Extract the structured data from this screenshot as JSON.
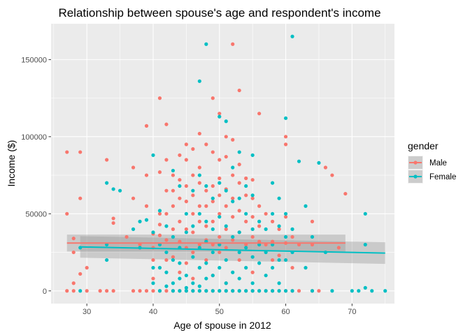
{
  "chart_data": {
    "type": "scatter",
    "title": "Relationship between spouse's age and respondent's income",
    "xlabel": "Age of spouse in 2012",
    "ylabel": "Income ($)",
    "xlim": [
      24.6,
      76.4
    ],
    "ylim": [
      -8250,
      173250
    ],
    "x_ticks": [
      30,
      40,
      50,
      60,
      70
    ],
    "y_ticks": [
      0,
      50000,
      100000,
      150000
    ],
    "y_tick_labels": [
      "0",
      "50000",
      "100000",
      "150000"
    ],
    "grid": true,
    "legend": {
      "title": "gender",
      "placement": "right"
    },
    "series": [
      {
        "name": "Male",
        "color": "#f8766d",
        "points": [
          [
            27,
            90000
          ],
          [
            27,
            50000
          ],
          [
            27,
            0
          ],
          [
            28,
            34000
          ],
          [
            28,
            25000
          ],
          [
            28,
            5000
          ],
          [
            28,
            0
          ],
          [
            29,
            90000
          ],
          [
            29,
            60000
          ],
          [
            29,
            11000
          ],
          [
            30,
            15000
          ],
          [
            30,
            0
          ],
          [
            32,
            0
          ],
          [
            33,
            85000
          ],
          [
            33,
            0
          ],
          [
            34,
            47000
          ],
          [
            34,
            44000
          ],
          [
            34,
            0
          ],
          [
            36,
            35000
          ],
          [
            37,
            80000
          ],
          [
            37,
            60000
          ],
          [
            37,
            0
          ],
          [
            38,
            30000
          ],
          [
            38,
            0
          ],
          [
            39,
            107000
          ],
          [
            39,
            75000
          ],
          [
            39,
            55000
          ],
          [
            39,
            0
          ],
          [
            40,
            37000
          ],
          [
            40,
            28000
          ],
          [
            40,
            20000
          ],
          [
            40,
            8000
          ],
          [
            40,
            0
          ],
          [
            41,
            125000
          ],
          [
            41,
            77000
          ],
          [
            41,
            50000
          ],
          [
            41,
            43000
          ],
          [
            41,
            36000
          ],
          [
            41,
            0
          ],
          [
            42,
            108000
          ],
          [
            42,
            85000
          ],
          [
            42,
            65000
          ],
          [
            42,
            50000
          ],
          [
            42,
            33000
          ],
          [
            42,
            20000
          ],
          [
            42,
            0
          ],
          [
            43,
            75000
          ],
          [
            43,
            65000
          ],
          [
            43,
            55000
          ],
          [
            43,
            40000
          ],
          [
            43,
            22000
          ],
          [
            43,
            0
          ],
          [
            44,
            88000
          ],
          [
            44,
            72000
          ],
          [
            44,
            60000
          ],
          [
            44,
            45000
          ],
          [
            44,
            32000
          ],
          [
            44,
            12000
          ],
          [
            44,
            0
          ],
          [
            45,
            95000
          ],
          [
            45,
            85000
          ],
          [
            45,
            68000
          ],
          [
            45,
            58000
          ],
          [
            45,
            40000
          ],
          [
            45,
            28000
          ],
          [
            45,
            18000
          ],
          [
            45,
            0
          ],
          [
            46,
            92000
          ],
          [
            46,
            75000
          ],
          [
            46,
            62000
          ],
          [
            46,
            50000
          ],
          [
            46,
            38000
          ],
          [
            46,
            25000
          ],
          [
            46,
            8000
          ],
          [
            46,
            0
          ],
          [
            47,
            102000
          ],
          [
            47,
            80000
          ],
          [
            47,
            70000
          ],
          [
            47,
            55000
          ],
          [
            47,
            45000
          ],
          [
            47,
            30000
          ],
          [
            47,
            15000
          ],
          [
            47,
            0
          ],
          [
            48,
            95000
          ],
          [
            48,
            65000
          ],
          [
            48,
            55000
          ],
          [
            48,
            42000
          ],
          [
            48,
            33000
          ],
          [
            48,
            20000
          ],
          [
            48,
            0
          ],
          [
            49,
            125000
          ],
          [
            49,
            90000
          ],
          [
            49,
            68000
          ],
          [
            49,
            58000
          ],
          [
            49,
            45000
          ],
          [
            49,
            30000
          ],
          [
            49,
            10000
          ],
          [
            49,
            0
          ],
          [
            50,
            115000
          ],
          [
            50,
            85000
          ],
          [
            50,
            73000
          ],
          [
            50,
            62000
          ],
          [
            50,
            50000
          ],
          [
            50,
            35000
          ],
          [
            50,
            25000
          ],
          [
            50,
            0
          ],
          [
            51,
            100000
          ],
          [
            51,
            87000
          ],
          [
            51,
            66000
          ],
          [
            51,
            55000
          ],
          [
            51,
            40000
          ],
          [
            51,
            28000
          ],
          [
            51,
            5000
          ],
          [
            51,
            0
          ],
          [
            52,
            160000
          ],
          [
            52,
            98000
          ],
          [
            52,
            75000
          ],
          [
            52,
            60000
          ],
          [
            52,
            48000
          ],
          [
            52,
            33000
          ],
          [
            52,
            0
          ],
          [
            53,
            130000
          ],
          [
            53,
            82000
          ],
          [
            53,
            70000
          ],
          [
            53,
            52000
          ],
          [
            53,
            38000
          ],
          [
            53,
            20000
          ],
          [
            53,
            0
          ],
          [
            54,
            73000
          ],
          [
            54,
            62000
          ],
          [
            54,
            45000
          ],
          [
            54,
            30000
          ],
          [
            54,
            0
          ],
          [
            55,
            72000
          ],
          [
            55,
            60000
          ],
          [
            55,
            48000
          ],
          [
            55,
            35000
          ],
          [
            55,
            12000
          ],
          [
            55,
            0
          ],
          [
            56,
            115000
          ],
          [
            56,
            55000
          ],
          [
            56,
            42000
          ],
          [
            56,
            32000
          ],
          [
            56,
            0
          ],
          [
            57,
            50000
          ],
          [
            57,
            30000
          ],
          [
            57,
            0
          ],
          [
            58,
            45000
          ],
          [
            58,
            32000
          ],
          [
            58,
            20000
          ],
          [
            58,
            0
          ],
          [
            59,
            40000
          ],
          [
            59,
            23000
          ],
          [
            59,
            0
          ],
          [
            60,
            100000
          ],
          [
            60,
            95000
          ],
          [
            60,
            48000
          ],
          [
            60,
            31000
          ],
          [
            60,
            0
          ],
          [
            61,
            35000
          ],
          [
            61,
            15000
          ],
          [
            61,
            0
          ],
          [
            62,
            30000
          ],
          [
            62,
            0
          ],
          [
            64,
            45000
          ],
          [
            64,
            30000
          ],
          [
            64,
            0
          ],
          [
            65,
            0
          ],
          [
            66,
            80000
          ],
          [
            67,
            75000
          ],
          [
            68,
            28000
          ],
          [
            69,
            63000
          ]
        ]
      },
      {
        "name": "Female",
        "color": "#00bfc4",
        "points": [
          [
            29,
            28000
          ],
          [
            29,
            0
          ],
          [
            33,
            70000
          ],
          [
            33,
            30000
          ],
          [
            33,
            20000
          ],
          [
            34,
            66000
          ],
          [
            35,
            65000
          ],
          [
            37,
            40000
          ],
          [
            38,
            45000
          ],
          [
            38,
            28000
          ],
          [
            39,
            46000
          ],
          [
            40,
            88000
          ],
          [
            40,
            38000
          ],
          [
            40,
            15000
          ],
          [
            40,
            5000
          ],
          [
            41,
            52000
          ],
          [
            41,
            30000
          ],
          [
            41,
            15000
          ],
          [
            41,
            0
          ],
          [
            42,
            42000
          ],
          [
            42,
            25000
          ],
          [
            42,
            12000
          ],
          [
            42,
            3000
          ],
          [
            43,
            78000
          ],
          [
            43,
            35000
          ],
          [
            43,
            20000
          ],
          [
            43,
            5000
          ],
          [
            43,
            0
          ],
          [
            44,
            68000
          ],
          [
            44,
            28000
          ],
          [
            44,
            18000
          ],
          [
            44,
            8000
          ],
          [
            44,
            0
          ],
          [
            45,
            50000
          ],
          [
            45,
            38000
          ],
          [
            45,
            10000
          ],
          [
            45,
            2000
          ],
          [
            45,
            0
          ],
          [
            46,
            65000
          ],
          [
            46,
            42000
          ],
          [
            46,
            22000
          ],
          [
            46,
            5000
          ],
          [
            46,
            0
          ],
          [
            47,
            136000
          ],
          [
            47,
            75000
          ],
          [
            47,
            50000
          ],
          [
            47,
            28000
          ],
          [
            47,
            15000
          ],
          [
            47,
            3000
          ],
          [
            47,
            0
          ],
          [
            48,
            160000
          ],
          [
            48,
            68000
          ],
          [
            48,
            45000
          ],
          [
            48,
            32000
          ],
          [
            48,
            18000
          ],
          [
            48,
            8000
          ],
          [
            48,
            0
          ],
          [
            49,
            60000
          ],
          [
            49,
            40000
          ],
          [
            49,
            25000
          ],
          [
            49,
            10000
          ],
          [
            49,
            0
          ],
          [
            50,
            113000
          ],
          [
            50,
            70000
          ],
          [
            50,
            48000
          ],
          [
            50,
            30000
          ],
          [
            50,
            15000
          ],
          [
            50,
            0
          ],
          [
            51,
            110000
          ],
          [
            51,
            65000
          ],
          [
            51,
            42000
          ],
          [
            51,
            20000
          ],
          [
            51,
            5000
          ],
          [
            51,
            0
          ],
          [
            52,
            80000
          ],
          [
            52,
            58000
          ],
          [
            52,
            35000
          ],
          [
            52,
            12000
          ],
          [
            52,
            0
          ],
          [
            53,
            90000
          ],
          [
            53,
            60000
          ],
          [
            53,
            38000
          ],
          [
            53,
            25000
          ],
          [
            53,
            8000
          ],
          [
            53,
            0
          ],
          [
            54,
            68000
          ],
          [
            54,
            50000
          ],
          [
            54,
            28000
          ],
          [
            54,
            15000
          ],
          [
            54,
            0
          ],
          [
            55,
            88000
          ],
          [
            55,
            62000
          ],
          [
            55,
            40000
          ],
          [
            55,
            22000
          ],
          [
            55,
            5000
          ],
          [
            55,
            0
          ],
          [
            56,
            45000
          ],
          [
            56,
            30000
          ],
          [
            56,
            18000
          ],
          [
            56,
            0
          ],
          [
            57,
            40000
          ],
          [
            57,
            25000
          ],
          [
            57,
            10000
          ],
          [
            57,
            0
          ],
          [
            58,
            70000
          ],
          [
            58,
            50000
          ],
          [
            58,
            30000
          ],
          [
            58,
            15000
          ],
          [
            58,
            0
          ],
          [
            59,
            60000
          ],
          [
            59,
            42000
          ],
          [
            59,
            20000
          ],
          [
            59,
            5000
          ],
          [
            59,
            0
          ],
          [
            60,
            112000
          ],
          [
            60,
            50000
          ],
          [
            60,
            35000
          ],
          [
            60,
            20000
          ],
          [
            60,
            0
          ],
          [
            61,
            165000
          ],
          [
            61,
            40000
          ],
          [
            61,
            25000
          ],
          [
            61,
            0
          ],
          [
            62,
            84000
          ],
          [
            63,
            55000
          ],
          [
            63,
            15000
          ],
          [
            64,
            35000
          ],
          [
            64,
            0
          ],
          [
            65,
            83000
          ],
          [
            66,
            25000
          ],
          [
            67,
            0
          ],
          [
            70,
            0
          ],
          [
            71,
            0
          ],
          [
            72,
            50000
          ],
          [
            72,
            30000
          ],
          [
            72,
            2000
          ],
          [
            73,
            0
          ],
          [
            75,
            0
          ]
        ]
      }
    ],
    "trend_lines": [
      {
        "series": "Male",
        "color": "#f8766d",
        "x": [
          27,
          69
        ],
        "y": [
          31000,
          31000
        ],
        "band": 5500
      },
      {
        "series": "Female",
        "color": "#00bfc4",
        "x": [
          29,
          75
        ],
        "y": [
          28500,
          24500
        ],
        "band": 7000
      }
    ]
  }
}
